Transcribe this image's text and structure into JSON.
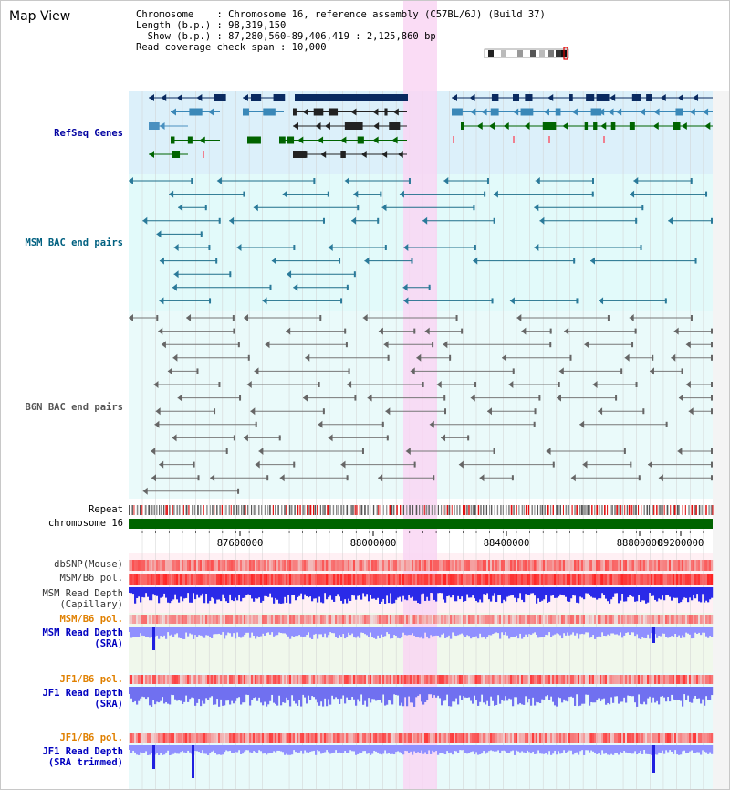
{
  "panel": {
    "title": "Map View"
  },
  "info": {
    "line1": "Chromosome    : Chromosome 16, reference assembly (C57BL/6J) (Build 37)",
    "line2": "Length (b.p.) : 98,319,150",
    "line3": "  Show (b.p.) : 87,280,560-89,406,419 : 2,125,860 bp",
    "line4": "Read coverage check span : 10,000"
  },
  "tracks": {
    "refseq": "RefSeq Genes",
    "msm_bac": "MSM BAC end pairs",
    "b6n_bac": "B6N BAC end pairs",
    "repeat": "Repeat",
    "chromosome": "chromosome 16",
    "dbsnp": "dbSNP(Mouse)",
    "msm_pol": "MSM/B6 pol.",
    "msm_depth_cap_1": "MSM Read Depth",
    "msm_depth_cap_2": "(Capillary)",
    "msm_pol_sra": "MSM/B6 pol.",
    "msm_depth_sra_1": "MSM Read Depth",
    "msm_depth_sra_2": "(SRA)",
    "jf1_pol": "JF1/B6 pol.",
    "jf1_depth_1": "JF1 Read Depth",
    "jf1_depth_2": "(SRA)",
    "jf1_pol_t": "JF1/B6 pol.",
    "jf1_depth_t_1": "JF1 Read Depth",
    "jf1_depth_t_2": "(SRA trimmed)"
  },
  "axis": {
    "ticks": [
      "87600000",
      "88000000",
      "88400000",
      "88800000",
      "89200000"
    ]
  },
  "colors": {
    "refseq_bg": "#dcf0fa",
    "bac_bg": "#e2fafa",
    "b6n_bg": "#eafafa",
    "highlight": "#f9d6f3",
    "refseq_label": "#0000a0",
    "msm_label": "#006080",
    "pol_orange": "#e08000",
    "depth_label": "#0000c0",
    "chromosome_green": "#006400"
  }
}
